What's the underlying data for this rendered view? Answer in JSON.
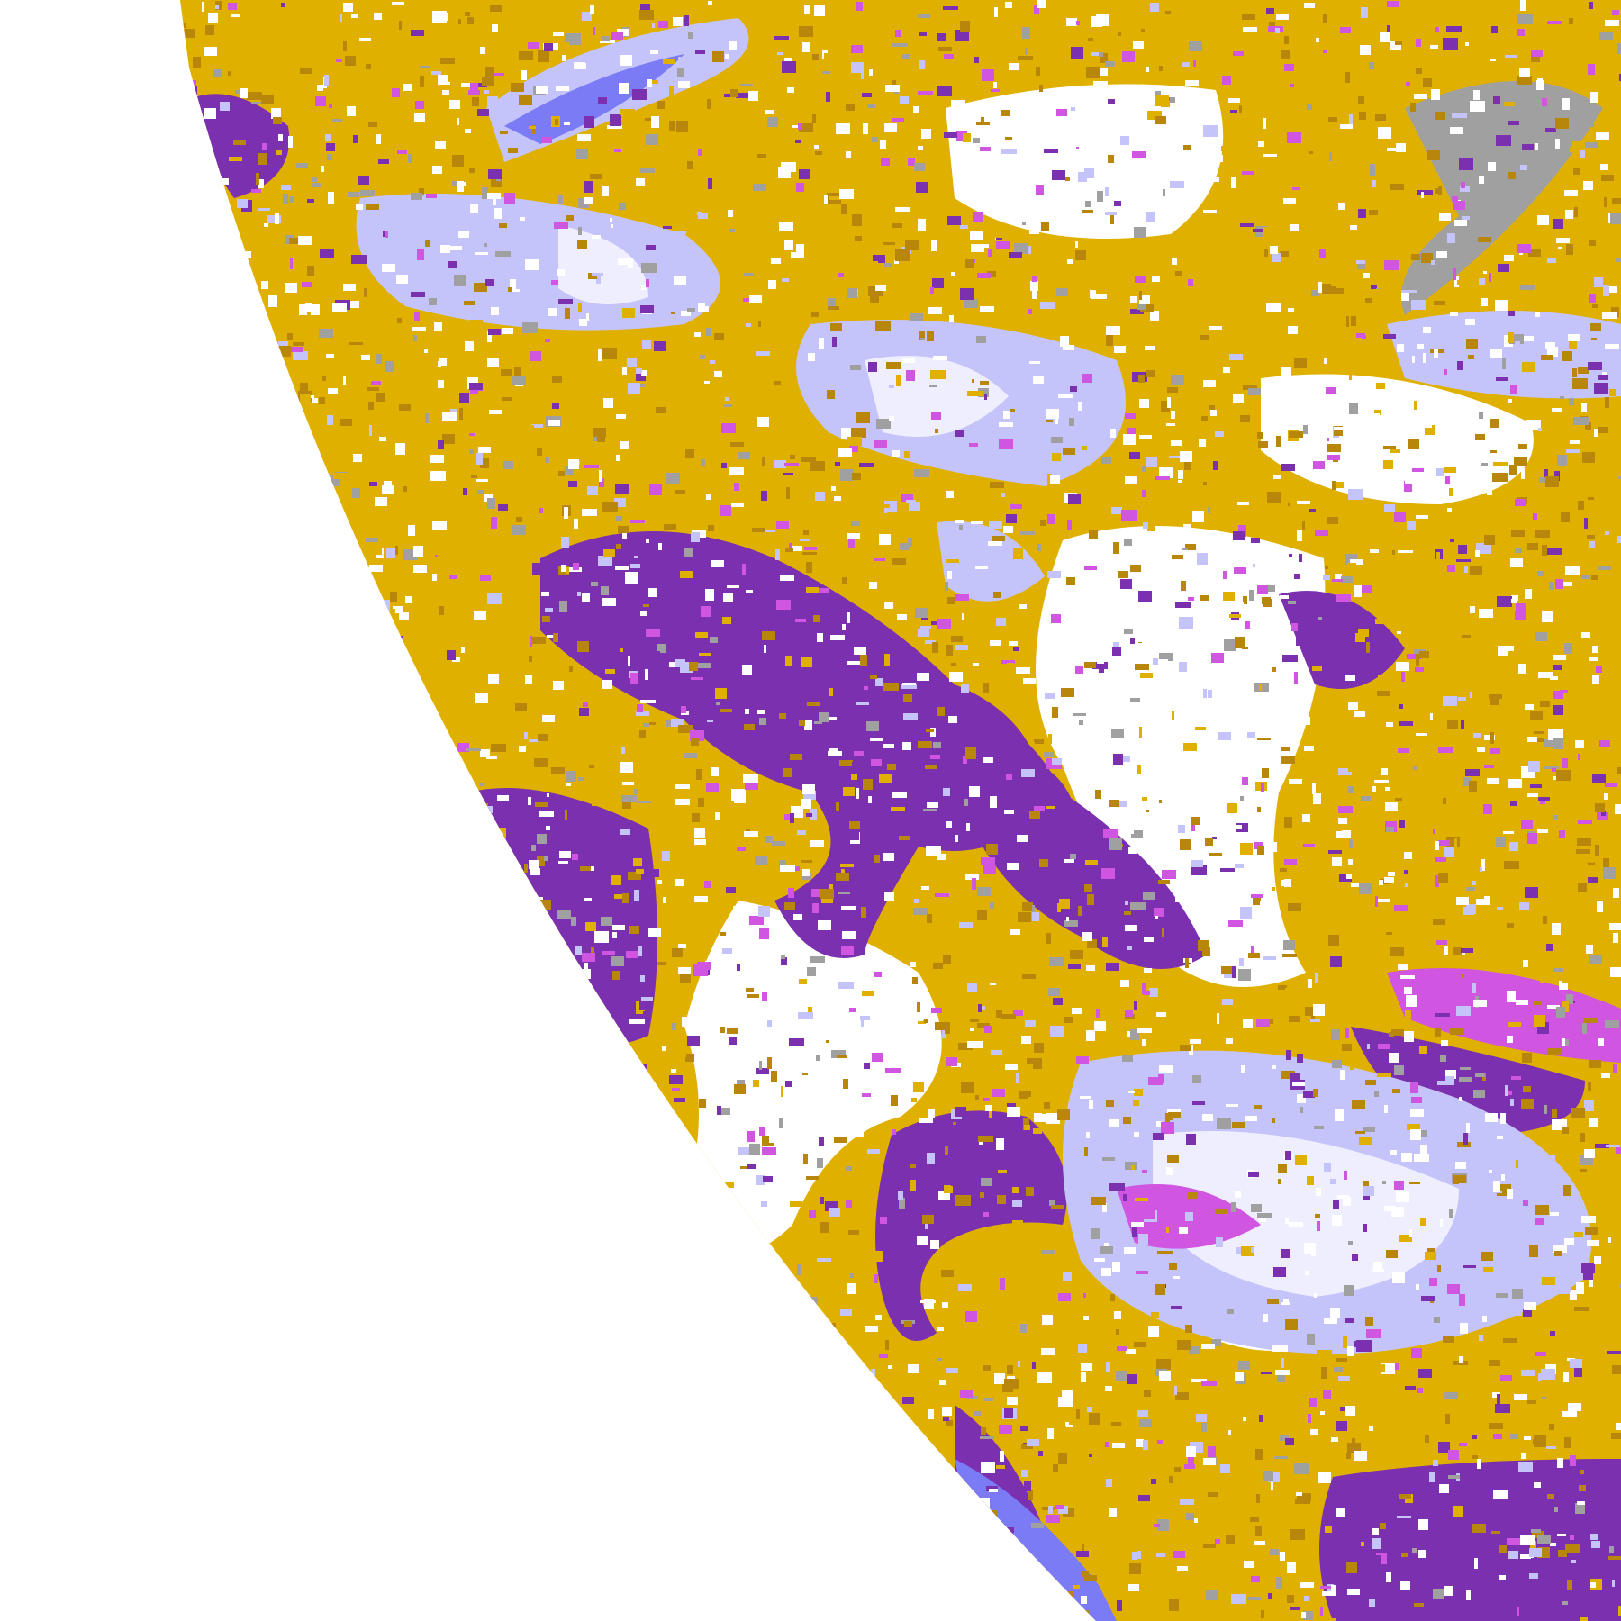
{
  "image": {
    "kind": "satellite cloud-type classification (full-disk segment)",
    "colors": {
      "background": "#ffffff",
      "clear_white": "#ffffff",
      "gold": "#e0b000",
      "dark_gold": "#b8860b",
      "purple": "#7b30b0",
      "magenta": "#d055e0",
      "blue": "#7b7bf5",
      "lavender": "#c4c4fa",
      "pale": "#eeeeff",
      "gray": "#a0a0a0"
    }
  }
}
